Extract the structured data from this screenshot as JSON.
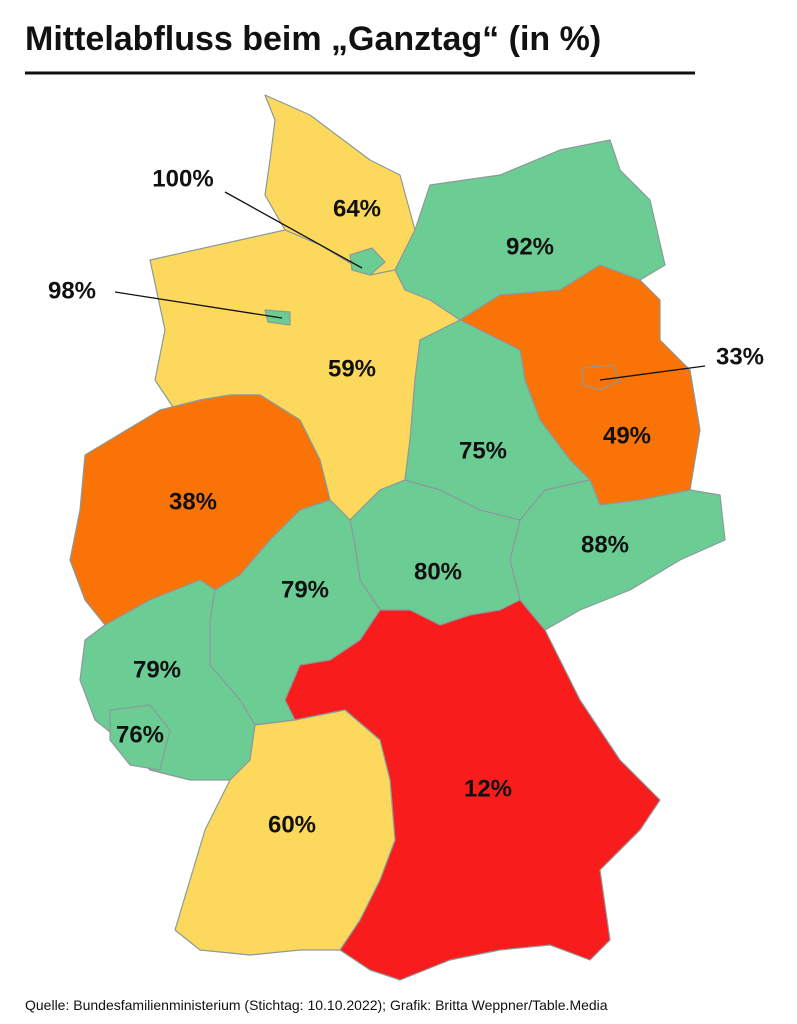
{
  "title": "Mittelabfluss beim „Ganztag“ (in %)",
  "regions": [
    {
      "label": "64%"
    },
    {
      "label": "100%"
    },
    {
      "label": "92%"
    },
    {
      "label": "98%"
    },
    {
      "label": "59%"
    },
    {
      "label": "33%"
    },
    {
      "label": "49%"
    },
    {
      "label": "75%"
    },
    {
      "label": "38%"
    },
    {
      "label": "88%"
    },
    {
      "label": "80%"
    },
    {
      "label": "79%"
    },
    {
      "label": "79%"
    },
    {
      "label": "76%"
    },
    {
      "label": "60%"
    },
    {
      "label": "12%"
    }
  ],
  "source": "Quelle: Bundesfamilienministerium (Stichtag: 10.10.2022); Grafik: Britta Weppner/Table.Media"
}
